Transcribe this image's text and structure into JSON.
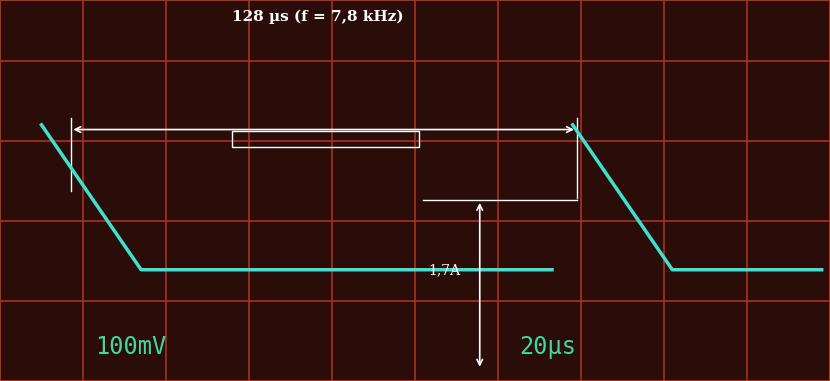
{
  "chart_data": {
    "type": "line",
    "title": "128 µs (f = 7,8 kHz)",
    "annotations": [
      "1,7A",
      "100mV",
      "20µs"
    ],
    "x": [
      10,
      34,
      133,
      135.5,
      138,
      162,
      198
    ],
    "values": [
      320,
      139,
      139,
      null,
      320,
      139,
      139
    ],
    "color": "#3fe0d0",
    "xlim": [
      0,
      200
    ],
    "ylim": [
      0,
      476
    ],
    "xticks": [
      0,
      20,
      40,
      60,
      80,
      100,
      120,
      140,
      160,
      180,
      200
    ],
    "yticks": [
      0,
      100,
      200,
      300,
      400
    ],
    "grid": true,
    "tick_labels": false
  }
}
